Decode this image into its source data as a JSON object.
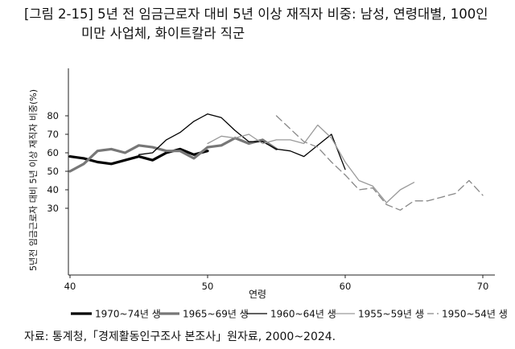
{
  "title_line1": "[그림 2-15] 5년 전 임금근로자 대비 5년 이상 재직자 비중: 남성, 연령대별, 100인",
  "title_line2": "미만 사업체, 화이트칼라 직군",
  "source": "자료: 통계청,「경제활동인구조사 본조사」원자료, 2000~2024.",
  "chart_data": {
    "type": "line",
    "xlabel": "연령",
    "ylabel": "5년전 임금근로자 대비 5년 이상 재직자 비중(%)",
    "xlim": [
      40,
      70
    ],
    "ylim": [
      0,
      100
    ],
    "xticks": [
      40,
      50,
      60,
      70
    ],
    "yticks": [
      30,
      40,
      50,
      60,
      70,
      80
    ],
    "grid": false,
    "legend_position": "bottom",
    "series": [
      {
        "name": "1970~74년 생",
        "color": "#000000",
        "width": 3.2,
        "dash": "",
        "x": [
          40,
          41,
          42,
          43,
          44,
          45,
          46,
          47,
          48,
          49,
          50
        ],
        "y": [
          58,
          57,
          55,
          54,
          56,
          58,
          56,
          60,
          62,
          59,
          61
        ]
      },
      {
        "name": "1965~69년 생",
        "color": "#777777",
        "width": 3.2,
        "dash": "",
        "x": [
          40,
          41,
          42,
          43,
          44,
          45,
          46,
          47,
          48,
          49,
          50,
          51,
          52,
          53,
          54,
          55
        ],
        "y": [
          50,
          54,
          61,
          62,
          60,
          64,
          63,
          61,
          61,
          57,
          63,
          64,
          68,
          65,
          67,
          62
        ]
      },
      {
        "name": "1960~64년 생",
        "color": "#000000",
        "width": 1.3,
        "dash": "",
        "x": [
          45,
          46,
          47,
          48,
          49,
          50,
          51,
          52,
          53,
          54,
          55,
          56,
          57,
          58,
          59,
          60
        ],
        "y": [
          59,
          60,
          67,
          71,
          77,
          81,
          79,
          72,
          66,
          66,
          62,
          61,
          58,
          64,
          70,
          51
        ]
      },
      {
        "name": "1955~59년 생",
        "color": "#9a9a9a",
        "width": 1.3,
        "dash": "",
        "x": [
          50,
          51,
          52,
          53,
          54,
          55,
          56,
          57,
          58,
          59,
          60,
          61,
          62,
          63,
          64,
          65
        ],
        "y": [
          65,
          69,
          68,
          70,
          65,
          67,
          67,
          65,
          75,
          68,
          55,
          45,
          42,
          33,
          40,
          44
        ]
      },
      {
        "name": "1950~54년 생",
        "color": "#888888",
        "width": 1.3,
        "dash": "9,5",
        "x": [
          55,
          56,
          57,
          58,
          59,
          60,
          61,
          62,
          63,
          64,
          65,
          66,
          67,
          68,
          69,
          70
        ],
        "y": [
          80,
          73,
          66,
          63,
          55,
          48,
          40,
          41,
          32,
          29,
          34,
          34,
          36,
          38,
          45,
          37
        ]
      }
    ],
    "extra_point_note": ""
  }
}
